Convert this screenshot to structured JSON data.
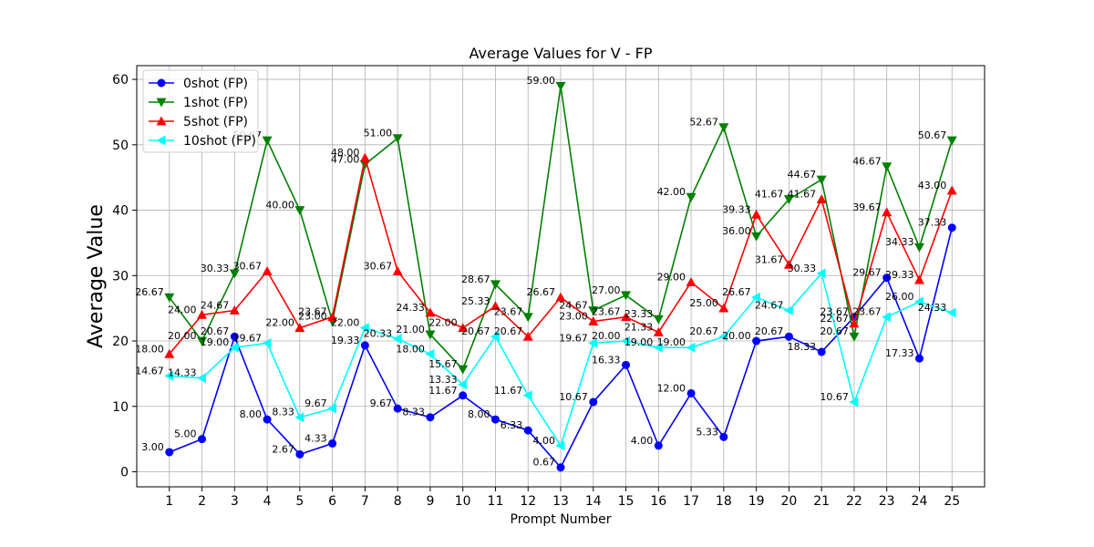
{
  "chart_data": {
    "type": "line",
    "title": "Average Values for V - FP",
    "xlabel": "Prompt Number",
    "ylabel": "Average Value",
    "x": [
      1,
      2,
      3,
      4,
      5,
      6,
      7,
      8,
      9,
      10,
      11,
      12,
      13,
      14,
      15,
      16,
      17,
      18,
      19,
      20,
      21,
      22,
      23,
      24,
      25
    ],
    "xlim": [
      0,
      26
    ],
    "ylim": [
      -2.3,
      62.1
    ],
    "yticks": [
      0,
      10,
      20,
      30,
      40,
      50,
      60
    ],
    "grid": true,
    "legend_position": "top-left",
    "series": [
      {
        "name": "0shot (FP)",
        "color": "#0000ff",
        "marker": "circle",
        "values": [
          3.0,
          5.0,
          20.67,
          8.0,
          2.67,
          4.33,
          19.33,
          9.67,
          8.33,
          11.67,
          8.0,
          6.33,
          0.67,
          10.67,
          16.33,
          4.0,
          12.0,
          5.33,
          20.0,
          20.67,
          18.33,
          23.67,
          29.67,
          17.33,
          37.33
        ]
      },
      {
        "name": "1shot (FP)",
        "color": "#008000",
        "marker": "triangle-down",
        "values": [
          26.67,
          20.0,
          30.33,
          50.67,
          40.0,
          23.0,
          47.0,
          51.0,
          21.0,
          15.67,
          28.67,
          23.67,
          59.0,
          24.67,
          27.0,
          23.33,
          42.0,
          52.67,
          36.0,
          41.67,
          44.67,
          20.67,
          46.67,
          34.33,
          50.67
        ]
      },
      {
        "name": "5shot (FP)",
        "color": "#ff0000",
        "marker": "triangle-up",
        "values": [
          18.0,
          24.0,
          24.67,
          30.67,
          22.0,
          23.67,
          48.0,
          30.67,
          24.33,
          22.0,
          25.33,
          20.67,
          26.67,
          23.0,
          23.67,
          21.33,
          29.0,
          25.0,
          39.33,
          31.67,
          41.67,
          22.67,
          39.67,
          29.33,
          43.0
        ]
      },
      {
        "name": "10shot (FP)",
        "color": "#00ffff",
        "marker": "triangle-left",
        "values": [
          14.67,
          14.33,
          19.0,
          19.67,
          8.33,
          9.67,
          22.0,
          20.33,
          18.0,
          13.33,
          20.67,
          11.67,
          4.0,
          19.67,
          20.0,
          19.0,
          19.0,
          20.67,
          26.67,
          24.67,
          30.33,
          10.67,
          23.67,
          26.0,
          24.33
        ]
      }
    ]
  }
}
